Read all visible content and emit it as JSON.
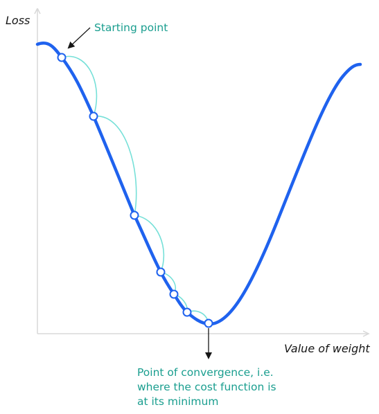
{
  "axes": {
    "y_label": "Loss",
    "x_label": "Value of weight"
  },
  "annotations": {
    "start": "Starting point",
    "convergence": [
      "Point of convergence, i.e.",
      "where the cost function is",
      "at its minimum"
    ]
  },
  "colors": {
    "curve": "#1f62ee",
    "step_arcs": "#76e0d8",
    "annotation_text": "#1a9e8f",
    "axis": "#d8d8d8",
    "arrow": "#161616"
  }
}
